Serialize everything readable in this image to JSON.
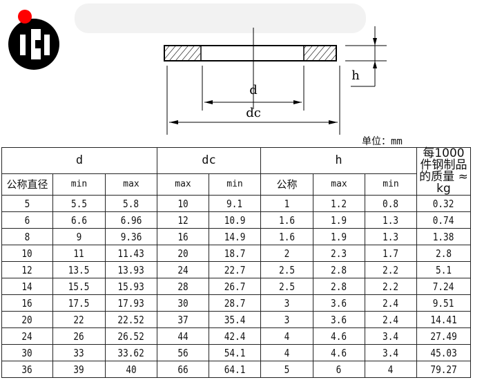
{
  "unit_label": "单位：mm",
  "drawing": {
    "labels": {
      "d": "d",
      "dc": "dc",
      "h": "h"
    }
  },
  "table": {
    "groups": {
      "d": "d",
      "dc": "dc",
      "h": "h",
      "weight": "每1000件钢制品的质量 ≈ kg"
    },
    "subheaders": [
      "公称直径",
      "min",
      "max",
      "max",
      "min",
      "公称",
      "max",
      "min"
    ],
    "rows": [
      [
        "5",
        "5.5",
        "5.8",
        "10",
        "9.1",
        "1",
        "1.2",
        "0.8",
        "0.32"
      ],
      [
        "6",
        "6.6",
        "6.96",
        "12",
        "10.9",
        "1.6",
        "1.9",
        "1.3",
        "0.74"
      ],
      [
        "8",
        "9",
        "9.36",
        "16",
        "14.9",
        "1.6",
        "1.9",
        "1.3",
        "1.38"
      ],
      [
        "10",
        "11",
        "11.43",
        "20",
        "18.7",
        "2",
        "2.3",
        "1.7",
        "2.8"
      ],
      [
        "12",
        "13.5",
        "13.93",
        "24",
        "22.7",
        "2.5",
        "2.8",
        "2.2",
        "5.1"
      ],
      [
        "14",
        "15.5",
        "15.93",
        "28",
        "26.7",
        "2.5",
        "2.8",
        "2.2",
        "7.24"
      ],
      [
        "16",
        "17.5",
        "17.93",
        "30",
        "28.7",
        "3",
        "3.6",
        "2.4",
        "9.51"
      ],
      [
        "20",
        "22",
        "22.52",
        "37",
        "35.4",
        "3",
        "3.6",
        "2.4",
        "14.41"
      ],
      [
        "24",
        "26",
        "26.52",
        "44",
        "42.4",
        "4",
        "4.6",
        "3.4",
        "27.49"
      ],
      [
        "30",
        "33",
        "33.62",
        "56",
        "54.1",
        "4",
        "4.6",
        "3.4",
        "45.03"
      ],
      [
        "36",
        "39",
        "40",
        "66",
        "64.1",
        "5",
        "6",
        "4",
        "79.27"
      ]
    ]
  },
  "colors": {
    "logo_red": "#ff0000",
    "logo_black": "#000000"
  }
}
